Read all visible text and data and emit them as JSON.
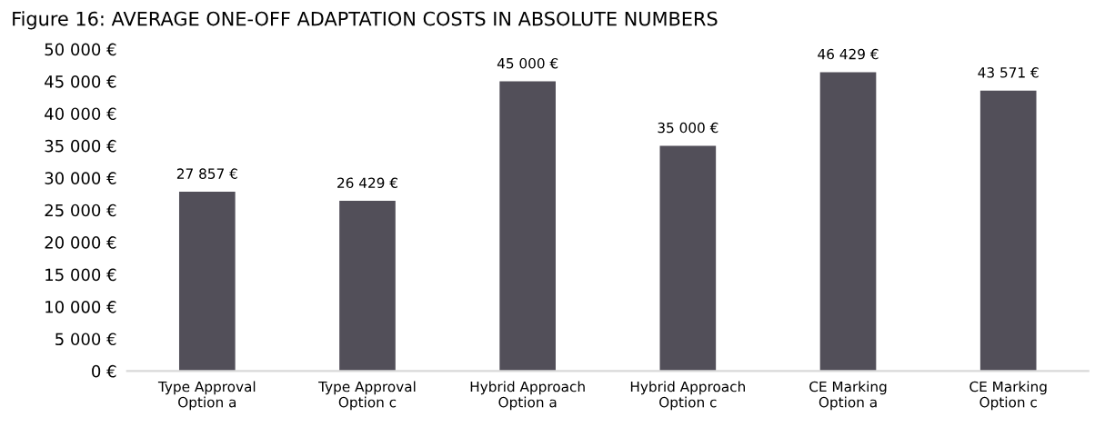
{
  "chart_data": {
    "type": "bar",
    "title": "Figure 16: AVERAGE ONE-OFF ADAPTATION COSTS IN ABSOLUTE NUMBERS",
    "categories": [
      "Type Approval\nOption a",
      "Type Approval\nOption c",
      "Hybrid Approach\nOption a",
      "Hybrid Approach\nOption c",
      "CE Marking\nOption a",
      "CE Marking\nOption c"
    ],
    "values": [
      27857,
      26429,
      45000,
      35000,
      46429,
      43571
    ],
    "value_labels": [
      "27 857 €",
      "26 429 €",
      "45 000 €",
      "35 000 €",
      "46 429 €",
      "43 571 €"
    ],
    "color": "#524f59",
    "ylim": [
      0,
      50000
    ],
    "yticks": [
      {
        "value": 0,
        "label": "0 €"
      },
      {
        "value": 5000,
        "label": "5 000 €"
      },
      {
        "value": 10000,
        "label": "10 000 €"
      },
      {
        "value": 15000,
        "label": "15 000 €"
      },
      {
        "value": 20000,
        "label": "20 000 €"
      },
      {
        "value": 25000,
        "label": "25 000 €"
      },
      {
        "value": 30000,
        "label": "30 000 €"
      },
      {
        "value": 35000,
        "label": "35 000 €"
      },
      {
        "value": 40000,
        "label": "40 000 €"
      },
      {
        "value": 45000,
        "label": "45 000 €"
      },
      {
        "value": 50000,
        "label": "50 000 €"
      }
    ],
    "grid": false
  }
}
